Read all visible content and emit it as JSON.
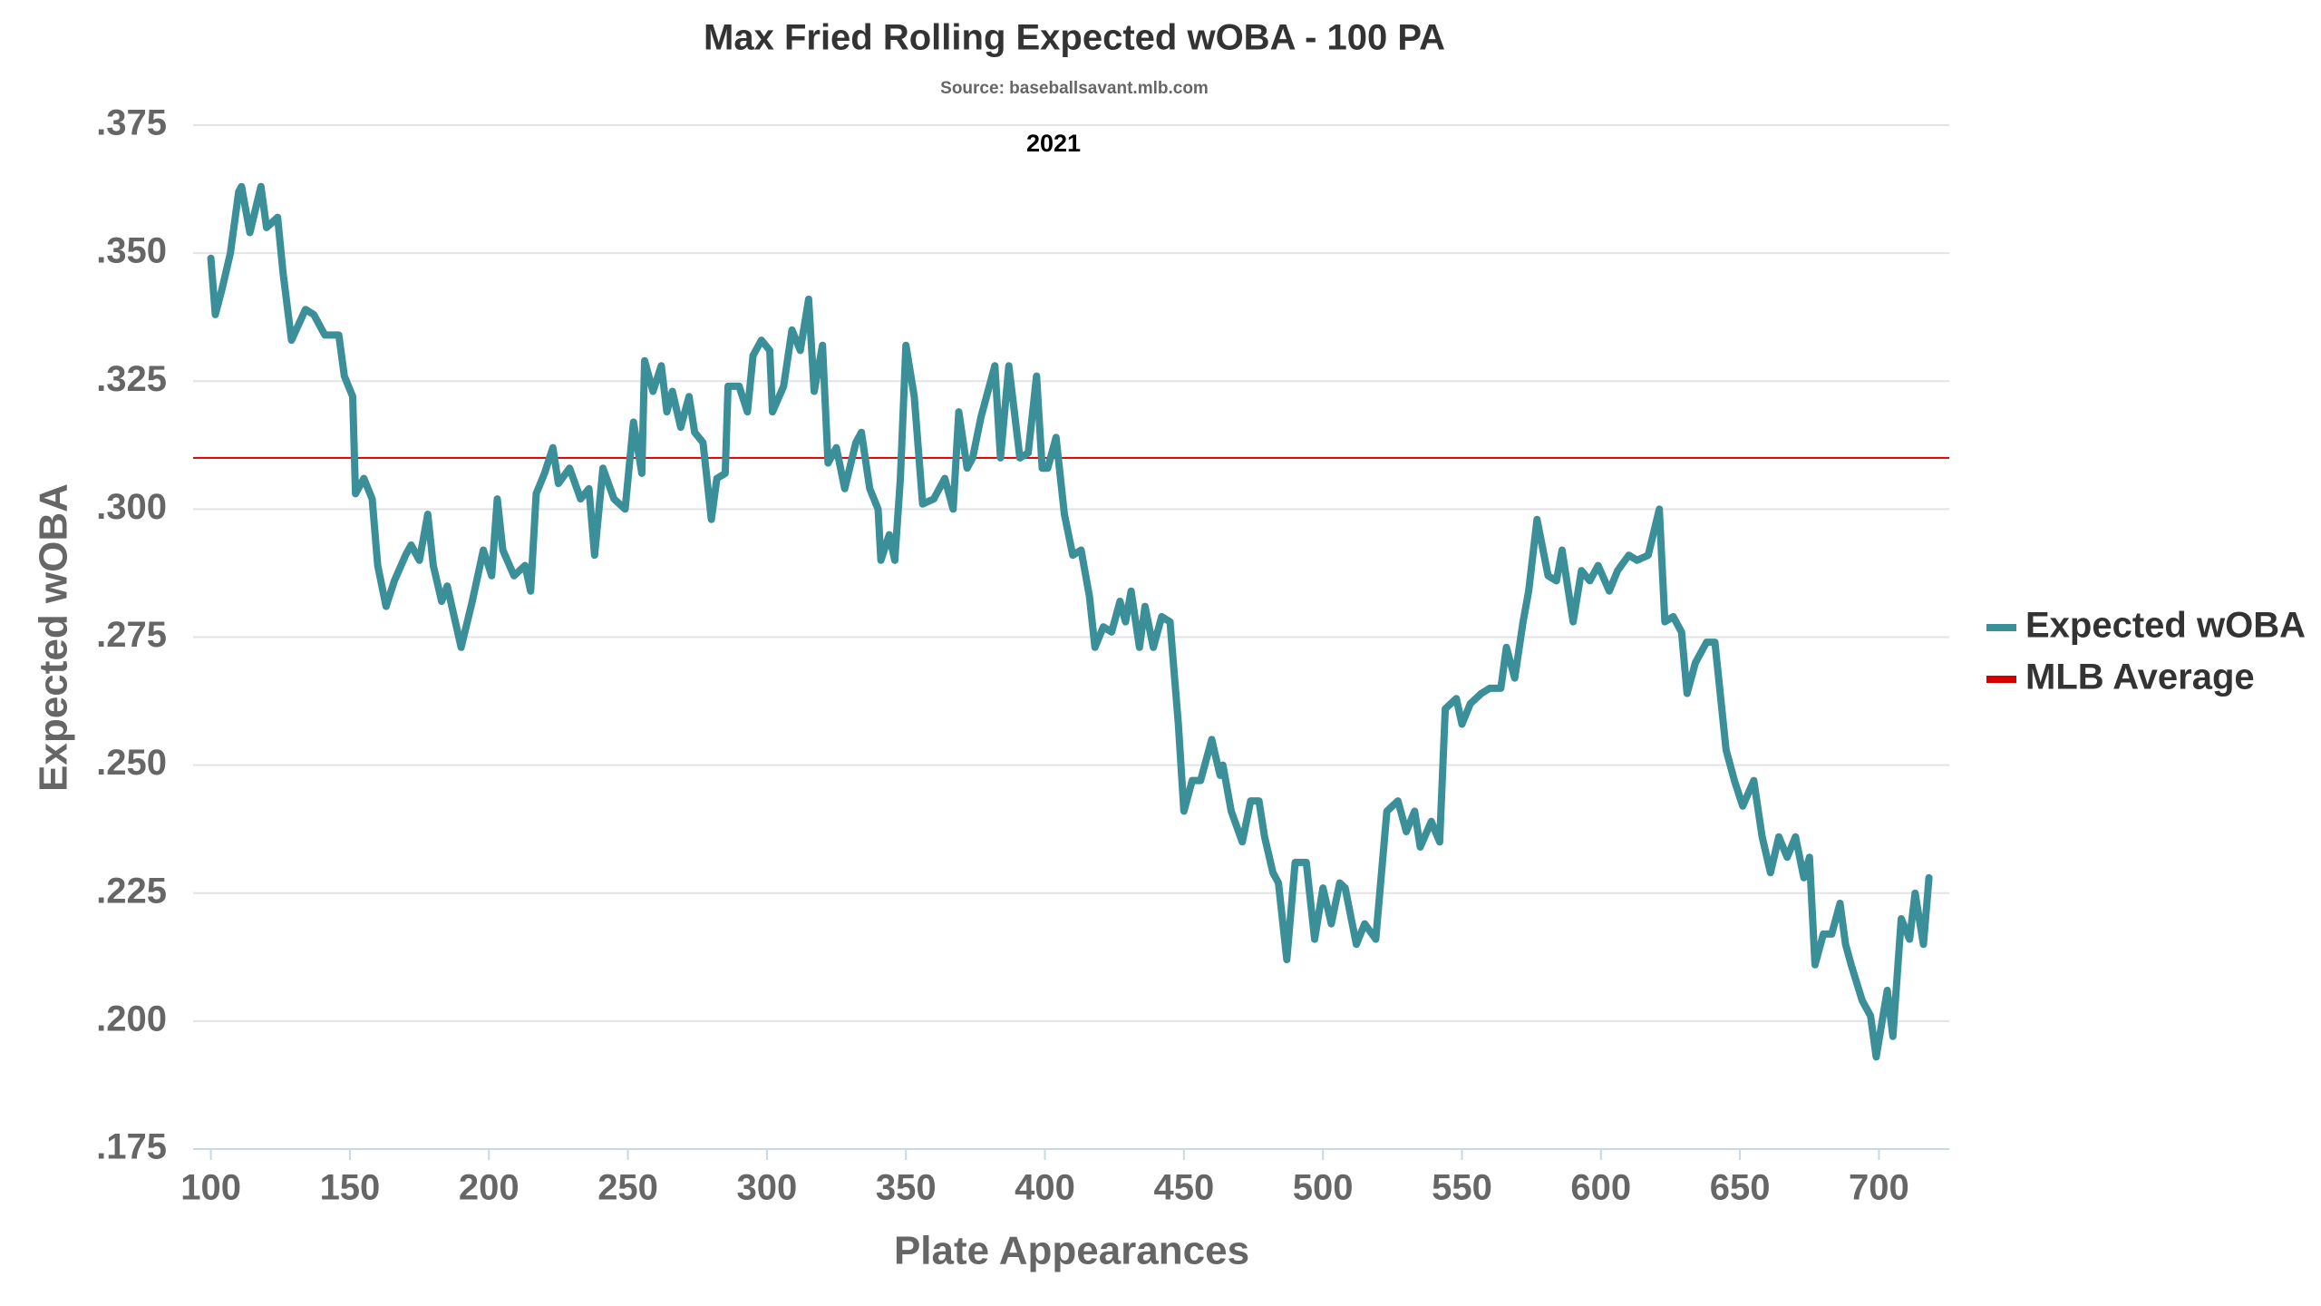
{
  "chart_data": {
    "type": "line",
    "title": "Max Fried Rolling Expected wOBA - 100 PA",
    "subtitle": "Source: baseballsavant.mlb.com",
    "annotation": "2021",
    "xlabel": "Plate Appearances",
    "ylabel": "Expected wOBA",
    "x": [
      100,
      101.6,
      104,
      107,
      110,
      111,
      114,
      118,
      120,
      124,
      126,
      129,
      134,
      137,
      141,
      146,
      148,
      151,
      152,
      155,
      158,
      160,
      163,
      166,
      170,
      172,
      175,
      178,
      180,
      183,
      185,
      190,
      194,
      198,
      201,
      203,
      205,
      209,
      213,
      215,
      217,
      220,
      223,
      225,
      229,
      233,
      236,
      238,
      241,
      245,
      249,
      252,
      255,
      256,
      259,
      262,
      264,
      266,
      269,
      272,
      274,
      277,
      280,
      282,
      285,
      286,
      290,
      293,
      295,
      298,
      301,
      302,
      306,
      309,
      312,
      315,
      317,
      320,
      322,
      325,
      328,
      332,
      334,
      337,
      340,
      341,
      344,
      346,
      348,
      350,
      353,
      356,
      360,
      364,
      367,
      369,
      372,
      374,
      377,
      382,
      384,
      387,
      389,
      391,
      394,
      397,
      399,
      401,
      404,
      407,
      410,
      413,
      416,
      418,
      421,
      424,
      427,
      429,
      431,
      434,
      436,
      439,
      442,
      445,
      448,
      450,
      453,
      456,
      460,
      463,
      464,
      467,
      471,
      474,
      477,
      479,
      482,
      484,
      487,
      490,
      494,
      497,
      500,
      503,
      506,
      508,
      512,
      515,
      519,
      523,
      527,
      530,
      533,
      535,
      539,
      542,
      544,
      548,
      550,
      553,
      557,
      560,
      564,
      566,
      569,
      572,
      574,
      577,
      581,
      584,
      586,
      590,
      593,
      596,
      599,
      603,
      606,
      610,
      613,
      617,
      621,
      623,
      626,
      629,
      631,
      634,
      638,
      641,
      645,
      648,
      651,
      655,
      658,
      661,
      664,
      667,
      670,
      673,
      675,
      677,
      680,
      683,
      686,
      688,
      690,
      694,
      697,
      699,
      703,
      705,
      708,
      711,
      713,
      716,
      718
    ],
    "series": [
      {
        "name": "Expected wOBA",
        "color": "#3a8f99",
        "values": [
          0.349,
          0.338,
          0.343,
          0.35,
          0.362,
          0.363,
          0.354,
          0.363,
          0.355,
          0.357,
          0.346,
          0.333,
          0.339,
          0.338,
          0.334,
          0.334,
          0.326,
          0.322,
          0.303,
          0.306,
          0.302,
          0.289,
          0.281,
          0.286,
          0.291,
          0.293,
          0.29,
          0.299,
          0.289,
          0.282,
          0.285,
          0.273,
          0.282,
          0.292,
          0.287,
          0.302,
          0.292,
          0.287,
          0.289,
          0.284,
          0.303,
          0.307,
          0.312,
          0.305,
          0.308,
          0.302,
          0.304,
          0.291,
          0.308,
          0.302,
          0.3,
          0.317,
          0.307,
          0.329,
          0.323,
          0.328,
          0.319,
          0.323,
          0.316,
          0.322,
          0.315,
          0.313,
          0.298,
          0.306,
          0.307,
          0.324,
          0.324,
          0.319,
          0.33,
          0.333,
          0.331,
          0.319,
          0.324,
          0.335,
          0.331,
          0.341,
          0.323,
          0.332,
          0.309,
          0.312,
          0.304,
          0.313,
          0.315,
          0.304,
          0.3,
          0.29,
          0.295,
          0.29,
          0.306,
          0.332,
          0.322,
          0.301,
          0.302,
          0.306,
          0.3,
          0.319,
          0.308,
          0.31,
          0.318,
          0.328,
          0.31,
          0.328,
          0.319,
          0.31,
          0.311,
          0.326,
          0.308,
          0.308,
          0.314,
          0.299,
          0.291,
          0.292,
          0.283,
          0.273,
          0.277,
          0.276,
          0.282,
          0.278,
          0.284,
          0.273,
          0.281,
          0.273,
          0.279,
          0.278,
          0.258,
          0.241,
          0.247,
          0.247,
          0.255,
          0.248,
          0.25,
          0.241,
          0.235,
          0.243,
          0.243,
          0.236,
          0.229,
          0.227,
          0.212,
          0.231,
          0.231,
          0.216,
          0.226,
          0.219,
          0.227,
          0.226,
          0.215,
          0.219,
          0.216,
          0.241,
          0.243,
          0.237,
          0.241,
          0.234,
          0.239,
          0.235,
          0.261,
          0.263,
          0.258,
          0.262,
          0.264,
          0.265,
          0.265,
          0.273,
          0.267,
          0.278,
          0.284,
          0.298,
          0.287,
          0.286,
          0.292,
          0.278,
          0.288,
          0.286,
          0.289,
          0.284,
          0.288,
          0.291,
          0.29,
          0.291,
          0.3,
          0.278,
          0.279,
          0.276,
          0.264,
          0.27,
          0.274,
          0.274,
          0.253,
          0.247,
          0.242,
          0.247,
          0.236,
          0.229,
          0.236,
          0.232,
          0.236,
          0.228,
          0.232,
          0.211,
          0.217,
          0.217,
          0.223,
          0.215,
          0.211,
          0.204,
          0.201,
          0.193,
          0.206,
          0.197,
          0.22,
          0.216,
          0.225,
          0.215,
          0.228
        ]
      }
    ],
    "reference_lines": [
      {
        "name": "MLB Average",
        "color": "#d40000",
        "value": 0.31
      }
    ],
    "xlim": [
      93.6,
      725.3
    ],
    "ylim": [
      0.175,
      0.375
    ],
    "xticks": [
      100,
      150,
      200,
      250,
      300,
      350,
      400,
      450,
      500,
      550,
      600,
      650,
      700
    ],
    "yticks": [
      {
        "value": 0.175,
        "label": ".175"
      },
      {
        "value": 0.2,
        "label": ".200"
      },
      {
        "value": 0.225,
        "label": ".225"
      },
      {
        "value": 0.25,
        "label": ".250"
      },
      {
        "value": 0.275,
        "label": ".275"
      },
      {
        "value": 0.3,
        "label": ".300"
      },
      {
        "value": 0.325,
        "label": ".325"
      },
      {
        "value": 0.35,
        "label": ".350"
      },
      {
        "value": 0.375,
        "label": ".375"
      }
    ],
    "grid": true,
    "legend": "right"
  }
}
